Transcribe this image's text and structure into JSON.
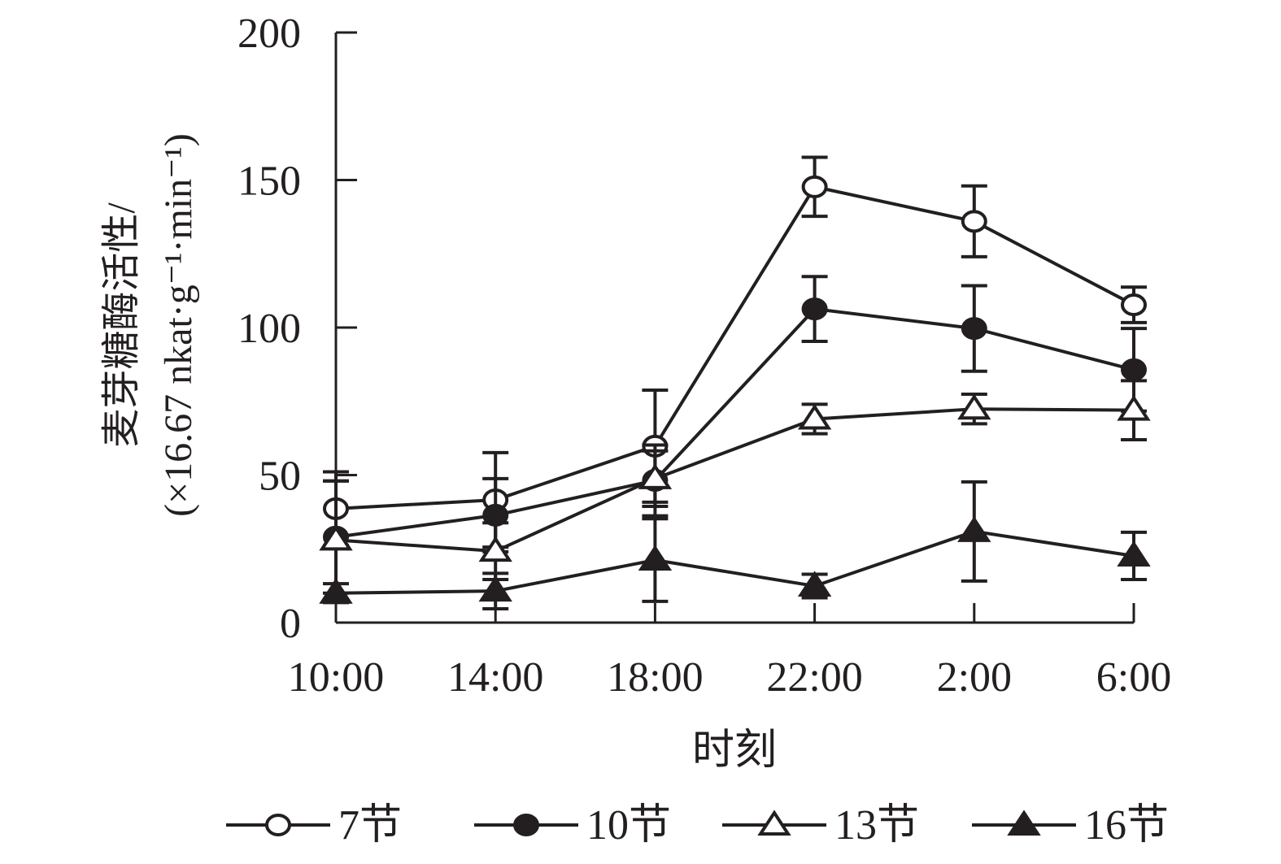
{
  "chart_data": {
    "type": "line",
    "title": "",
    "xlabel": "时刻",
    "ylabel_line1": "麦芽糖酶活性/",
    "ylabel_line2": "(×16.67 nkat·g⁻¹·min⁻¹)",
    "categories": [
      "10:00",
      "14:00",
      "18:00",
      "22:00",
      "2:00",
      "6:00"
    ],
    "ylim": [
      0,
      200
    ],
    "yticks": [
      0,
      50,
      100,
      150,
      200
    ],
    "grid": false,
    "legend_position": "bottom",
    "color": "#231f20",
    "series": [
      {
        "name": "7节",
        "marker": "open-circle",
        "values": [
          38.6,
          41.6,
          59.8,
          147.7,
          136,
          107.7
        ],
        "errors": [
          12.5,
          16,
          19,
          10,
          12,
          6
        ]
      },
      {
        "name": "10节",
        "marker": "filled-circle",
        "values": [
          29,
          36.4,
          48.2,
          106.3,
          99.7,
          85.7
        ],
        "errors": [
          19,
          12.4,
          12,
          11,
          14.5,
          14
        ]
      },
      {
        "name": "13节",
        "marker": "open-triangle",
        "values": [
          28,
          24.2,
          48.8,
          69,
          72.4,
          72
        ],
        "errors": [
          20,
          9.6,
          9.4,
          5,
          5,
          10
        ]
      },
      {
        "name": "16节",
        "marker": "filled-triangle",
        "values": [
          10,
          10.7,
          21.2,
          12.4,
          30.9,
          22.6
        ],
        "errors": [
          3.2,
          6,
          14,
          4,
          16.8,
          8
        ]
      }
    ]
  }
}
